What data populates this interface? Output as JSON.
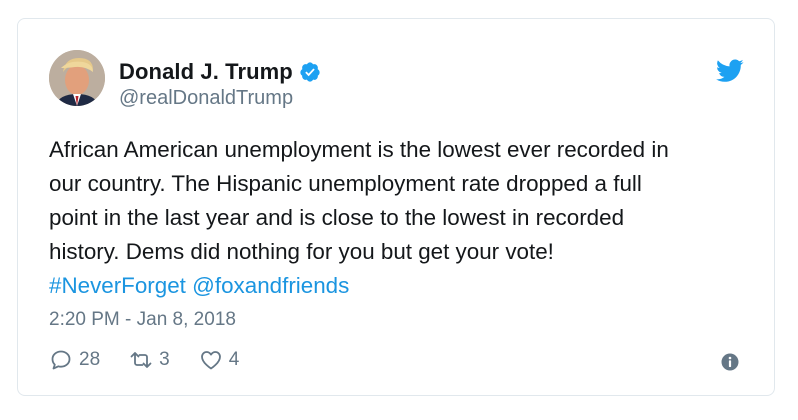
{
  "user": {
    "display_name": "Donald J. Trump",
    "handle": "@realDonaldTrump",
    "verified": true
  },
  "tweet": {
    "lines": [
      "African American unemployment is the lowest ever recorded in",
      "our country. The Hispanic unemployment rate dropped a full",
      "point in the last year and is close to the lowest in recorded",
      "history. Dems did nothing for you but get your vote!"
    ],
    "hashtag": "#NeverForget",
    "mention": "@foxandfriends",
    "timestamp": "2:20 PM - Jan 8, 2018"
  },
  "actions": {
    "reply_count": "28",
    "retweet_count": "3",
    "like_count": "4"
  },
  "icons": {
    "brand": "twitter-bird-icon",
    "verified": "verified-badge-icon",
    "reply": "reply-icon",
    "retweet": "retweet-icon",
    "like": "heart-icon",
    "info": "info-icon"
  },
  "colors": {
    "brand_blue": "#1da1f2",
    "link_blue": "#1b95e0",
    "secondary_text": "#657786",
    "border": "#e1e8ed"
  }
}
